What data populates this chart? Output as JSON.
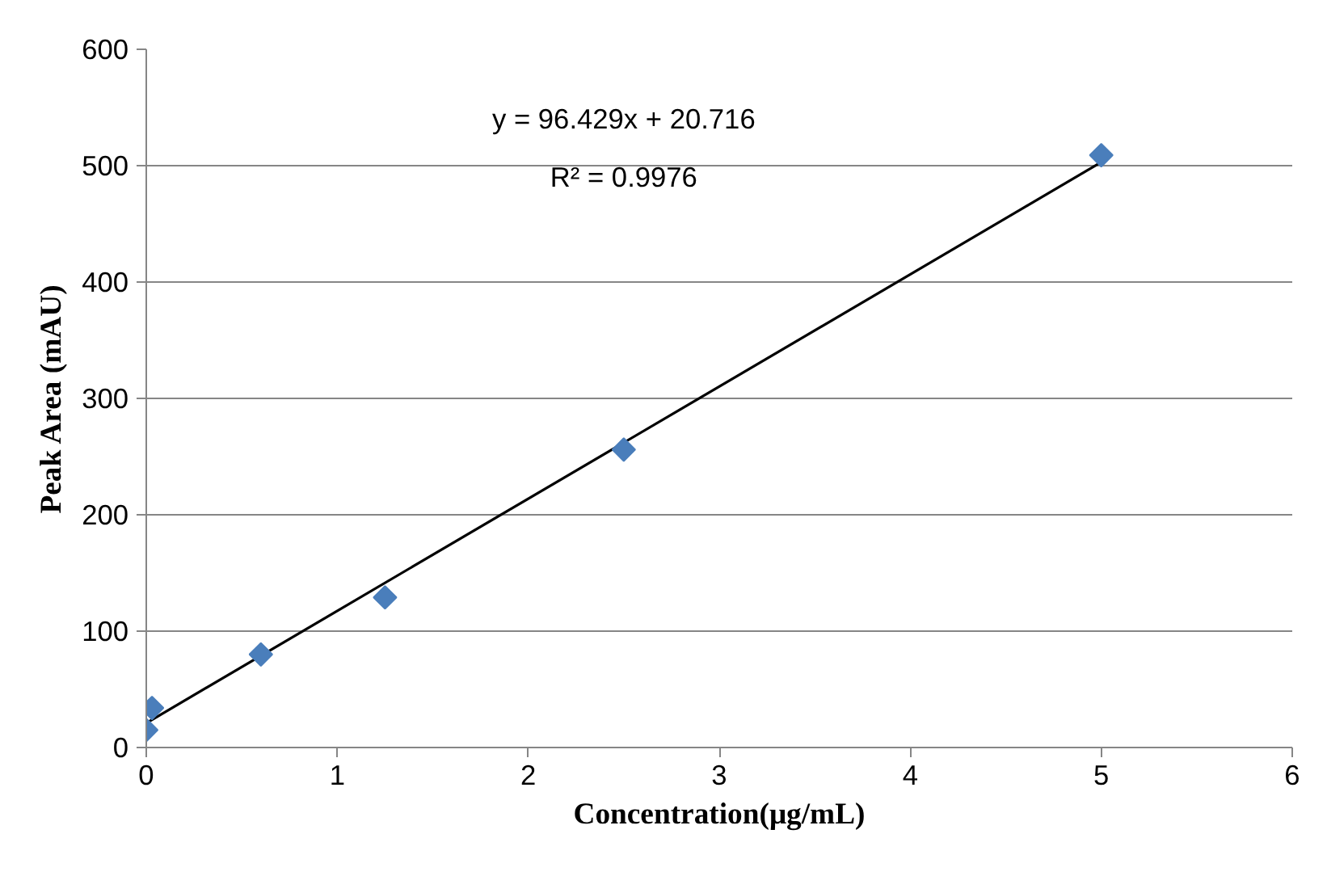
{
  "chart_data": {
    "type": "scatter",
    "xlabel": "Concentration(μg/mL)",
    "ylabel": "Peak Area (mAU)",
    "x": [
      0,
      0.03,
      0.6,
      1.25,
      2.5,
      5
    ],
    "series": [
      {
        "color": "#4a7ebb",
        "marker": "diamond",
        "values": [
          15,
          34,
          80,
          129,
          256,
          509
        ]
      },
      {
        "type": "line",
        "color": "#000000",
        "x": [
          0,
          5
        ],
        "values": [
          21,
          503
        ]
      }
    ],
    "annotations": [
      "y = 96.429x + 20.716",
      "R² = 0.9976"
    ],
    "xlim": [
      0,
      6
    ],
    "ylim": [
      0,
      600
    ],
    "xticks": [
      0,
      1,
      2,
      3,
      4,
      5,
      6
    ],
    "yticks": [
      0,
      100,
      200,
      300,
      400,
      500,
      600
    ],
    "grid": "y"
  }
}
